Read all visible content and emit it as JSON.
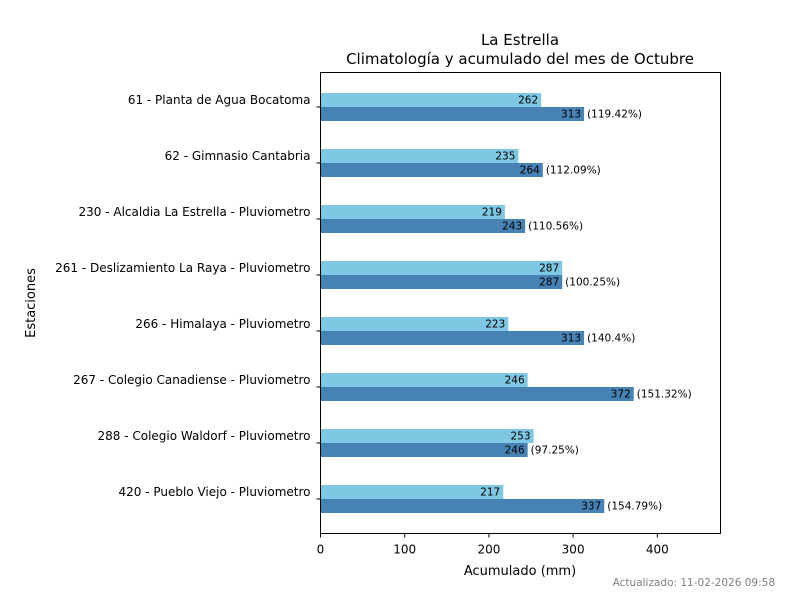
{
  "chart_data": {
    "type": "bar",
    "orientation": "horizontal",
    "title": "La Estrella",
    "subtitle": "Climatología y acumulado del mes de Octubre",
    "xlabel": "Acumulado (mm)",
    "ylabel": "Estaciones",
    "xlim": [
      0,
      475
    ],
    "xticks": [
      0,
      100,
      200,
      300,
      400
    ],
    "grid": false,
    "categories": [
      "61 - Planta de Agua Bocatoma",
      "62 - Gimnasio Cantabria",
      "230 - Alcaldia La Estrella - Pluviometro",
      "261 - Deslizamiento La Raya - Pluviometro",
      "266 - Himalaya - Pluviometro",
      "267 - Colegio Canadiense - Pluviometro",
      "288 - Colegio Waldorf - Pluviometro",
      "420 - Pueblo Viejo - Pluviometro"
    ],
    "series": [
      {
        "name": "Climatología",
        "color": "#7ec8e3",
        "values": [
          262,
          235,
          219,
          287,
          223,
          246,
          253,
          217
        ],
        "labels": [
          "262",
          "235",
          "219",
          "287",
          "223",
          "246",
          "253",
          "217"
        ]
      },
      {
        "name": "Acumulado",
        "color": "#4682b4",
        "values": [
          313,
          264,
          243,
          287,
          313,
          372,
          246,
          337
        ],
        "labels": [
          "313",
          "264",
          "243",
          "287",
          "313",
          "372",
          "246",
          "337"
        ],
        "percent_labels": [
          "(119.42%)",
          "(112.09%)",
          "(110.56%)",
          "(100.25%)",
          "(140.4%)",
          "(151.32%)",
          "(97.25%)",
          "(154.79%)"
        ]
      }
    ]
  },
  "footer": {
    "updated": "Actualizado: 11-02-2026 09:58"
  }
}
